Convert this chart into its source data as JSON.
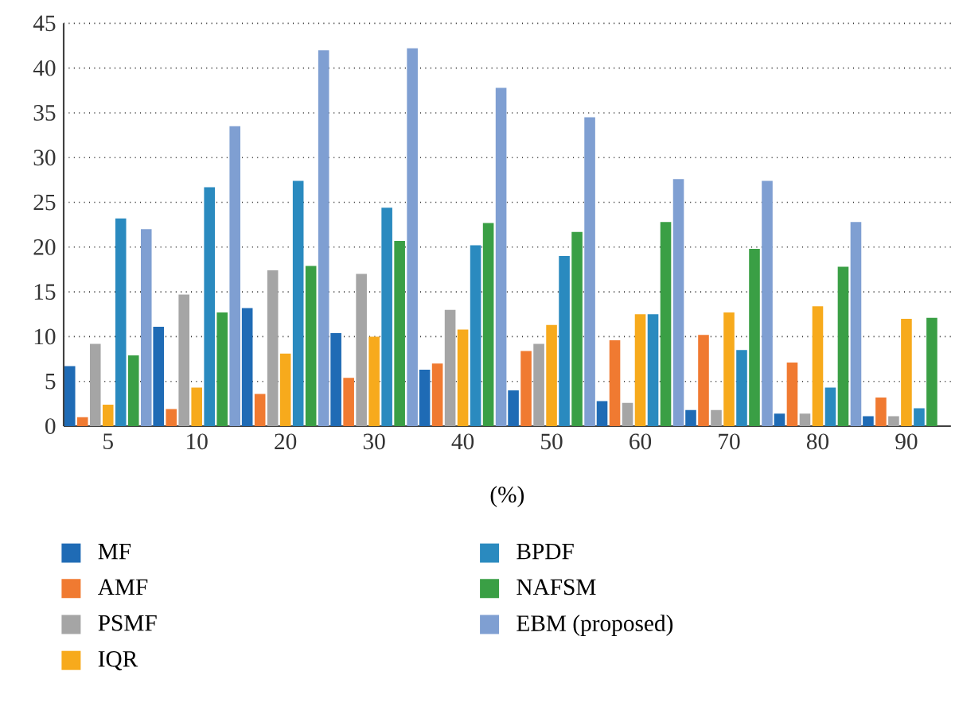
{
  "chart_data": {
    "type": "bar",
    "xlabel": "(%)",
    "categories": [
      "5",
      "10",
      "20",
      "30",
      "40",
      "50",
      "60",
      "70",
      "80",
      "90"
    ],
    "series": [
      {
        "name": "MF",
        "color": "#1f6bb5",
        "values": [
          6.7,
          11.1,
          13.2,
          10.4,
          6.3,
          4.0,
          2.8,
          1.8,
          1.4,
          1.1
        ]
      },
      {
        "name": "AMF",
        "color": "#f07a31",
        "values": [
          1.0,
          1.9,
          3.6,
          5.4,
          7.0,
          8.4,
          9.6,
          10.2,
          7.1,
          3.2
        ]
      },
      {
        "name": "PSMF",
        "color": "#a5a5a5",
        "values": [
          9.2,
          14.7,
          17.4,
          17.0,
          13.0,
          9.2,
          2.6,
          1.8,
          1.4,
          1.1
        ]
      },
      {
        "name": "IQR",
        "color": "#f7aa1c",
        "values": [
          2.4,
          4.3,
          8.1,
          10.0,
          10.8,
          11.3,
          12.5,
          12.7,
          13.4,
          12.0
        ]
      },
      {
        "name": "BPDF",
        "color": "#2a8abf",
        "values": [
          23.2,
          26.7,
          27.4,
          24.4,
          20.2,
          19.0,
          12.5,
          8.5,
          4.3,
          2.0
        ]
      },
      {
        "name": "NAFSM",
        "color": "#3a9f45",
        "values": [
          7.9,
          12.7,
          17.9,
          20.7,
          22.7,
          21.7,
          22.8,
          19.8,
          17.8,
          12.1
        ]
      },
      {
        "name": "EBM (proposed)",
        "color": "#7f9fd2",
        "values": [
          22.0,
          33.5,
          42.0,
          42.2,
          37.8,
          34.5,
          27.6,
          27.4,
          22.8,
          null
        ]
      }
    ],
    "ylim": [
      0,
      45
    ],
    "yticks": [
      0,
      5,
      10,
      15,
      20,
      25,
      30,
      35,
      40,
      45
    ],
    "grid": "y",
    "legend": "bottom"
  }
}
